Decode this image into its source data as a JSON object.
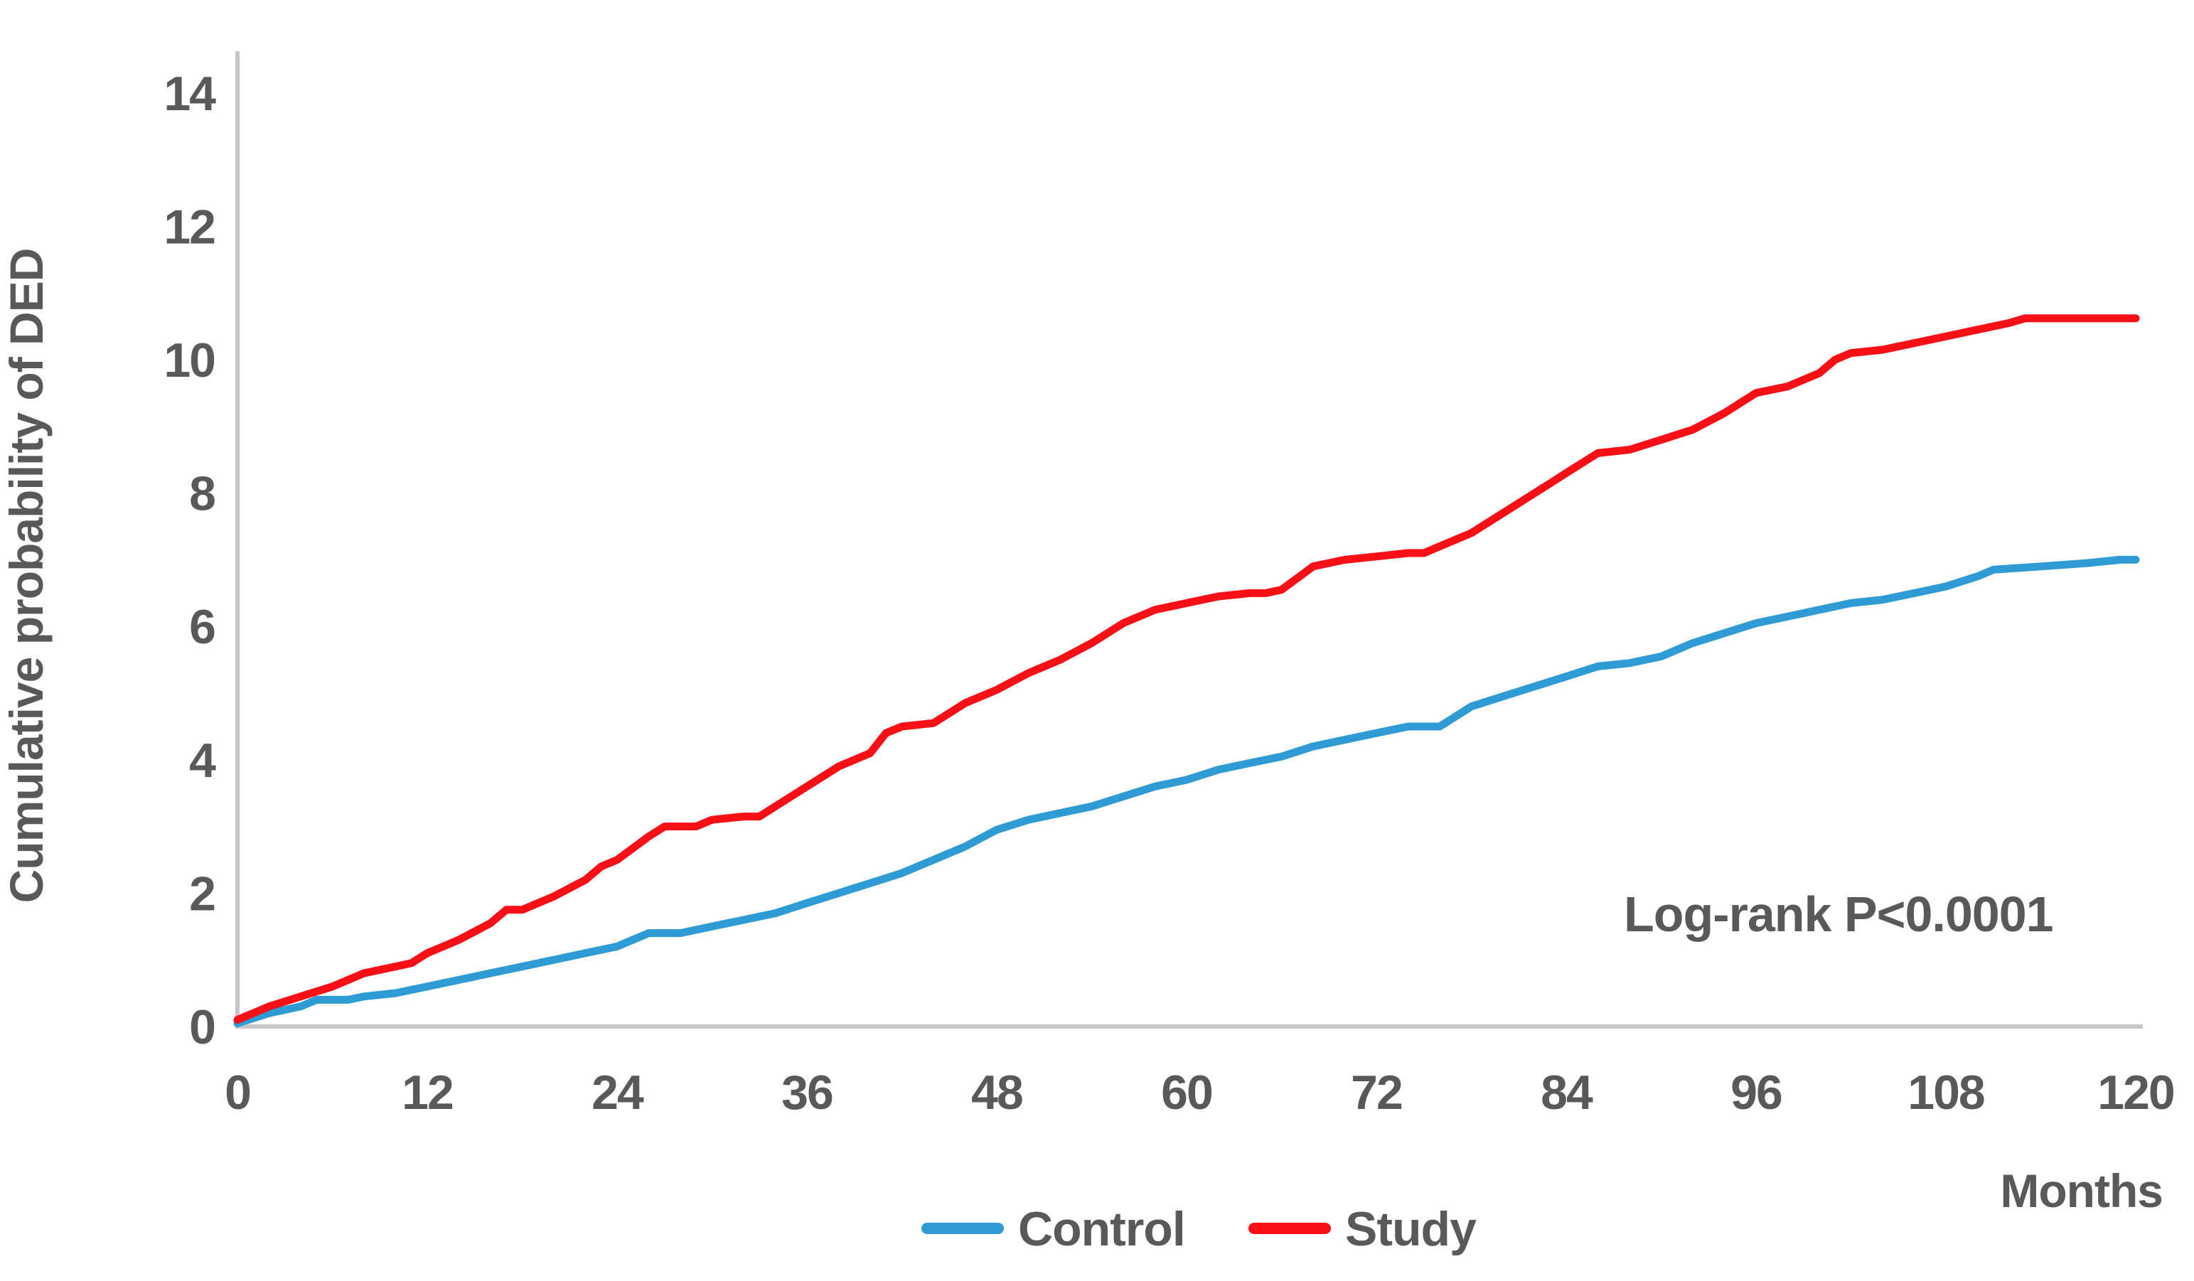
{
  "chart": {
    "y_axis_title": "Cumulative probability of DED",
    "x_axis_title": "Months",
    "annotation": "Log-rank P<0.0001",
    "legend_labels": [
      "Control",
      "Study"
    ],
    "colors": {
      "control": "#2E9BD5",
      "study": "#F90F16",
      "axis": "#C6C6C6",
      "text": "#595959"
    }
  },
  "chart_data": {
    "type": "line",
    "title": "",
    "xlabel": "Months",
    "ylabel": "Cumulative probability of DED",
    "xlim": [
      0,
      120
    ],
    "ylim": [
      0,
      14
    ],
    "x_ticks": [
      0,
      12,
      24,
      36,
      48,
      60,
      72,
      84,
      96,
      108,
      120
    ],
    "y_ticks": [
      0,
      2,
      4,
      6,
      8,
      10,
      12,
      14
    ],
    "grid": false,
    "legend_position": "bottom-center",
    "annotation": "Log-rank P<0.0001",
    "series": [
      {
        "name": "Control",
        "color": "#2E9BD5",
        "x": [
          0,
          2,
          4,
          5,
          7,
          8,
          10,
          12,
          14,
          16,
          18,
          20,
          22,
          24,
          25,
          26,
          28,
          30,
          32,
          34,
          36,
          38,
          40,
          42,
          44,
          46,
          48,
          50,
          52,
          54,
          56,
          58,
          60,
          62,
          64,
          66,
          68,
          70,
          72,
          74,
          76,
          78,
          80,
          82,
          84,
          86,
          88,
          90,
          92,
          94,
          96,
          98,
          100,
          102,
          104,
          106,
          108,
          110,
          111,
          114,
          117,
          119,
          120
        ],
        "y": [
          0.05,
          0.2,
          0.3,
          0.4,
          0.4,
          0.45,
          0.5,
          0.6,
          0.7,
          0.8,
          0.9,
          1.0,
          1.1,
          1.2,
          1.3,
          1.4,
          1.4,
          1.5,
          1.6,
          1.7,
          1.85,
          2.0,
          2.15,
          2.3,
          2.5,
          2.7,
          2.95,
          3.1,
          3.2,
          3.3,
          3.45,
          3.6,
          3.7,
          3.85,
          3.95,
          4.05,
          4.2,
          4.3,
          4.4,
          4.5,
          4.5,
          4.8,
          4.95,
          5.1,
          5.25,
          5.4,
          5.45,
          5.55,
          5.75,
          5.9,
          6.05,
          6.15,
          6.25,
          6.35,
          6.4,
          6.5,
          6.6,
          6.75,
          6.85,
          6.9,
          6.95,
          7.0,
          7.0
        ]
      },
      {
        "name": "Study",
        "color": "#F90F16",
        "x": [
          0,
          2,
          4,
          6,
          8,
          10,
          11,
          12,
          14,
          16,
          17,
          18,
          20,
          22,
          23,
          24,
          26,
          27,
          29,
          30,
          32,
          33,
          34,
          36,
          38,
          40,
          41,
          42,
          44,
          45,
          46,
          48,
          50,
          52,
          54,
          56,
          58,
          60,
          62,
          64,
          65,
          66,
          68,
          70,
          72,
          74,
          75,
          76,
          78,
          80,
          82,
          83,
          84,
          86,
          88,
          90,
          92,
          94,
          96,
          98,
          100,
          101,
          102,
          104,
          106,
          108,
          110,
          112,
          113,
          116,
          120
        ],
        "y": [
          0.1,
          0.3,
          0.45,
          0.6,
          0.8,
          0.9,
          0.95,
          1.1,
          1.3,
          1.55,
          1.75,
          1.75,
          1.95,
          2.2,
          2.4,
          2.5,
          2.85,
          3.0,
          3.0,
          3.1,
          3.15,
          3.15,
          3.3,
          3.6,
          3.9,
          4.1,
          4.4,
          4.5,
          4.55,
          4.7,
          4.85,
          5.05,
          5.3,
          5.5,
          5.75,
          6.05,
          6.25,
          6.35,
          6.45,
          6.5,
          6.5,
          6.55,
          6.9,
          7.0,
          7.05,
          7.1,
          7.1,
          7.2,
          7.4,
          7.7,
          8.0,
          8.15,
          8.3,
          8.6,
          8.65,
          8.8,
          8.95,
          9.2,
          9.5,
          9.6,
          9.8,
          10.0,
          10.1,
          10.15,
          10.25,
          10.35,
          10.45,
          10.55,
          10.62,
          10.62,
          10.62
        ]
      }
    ]
  }
}
